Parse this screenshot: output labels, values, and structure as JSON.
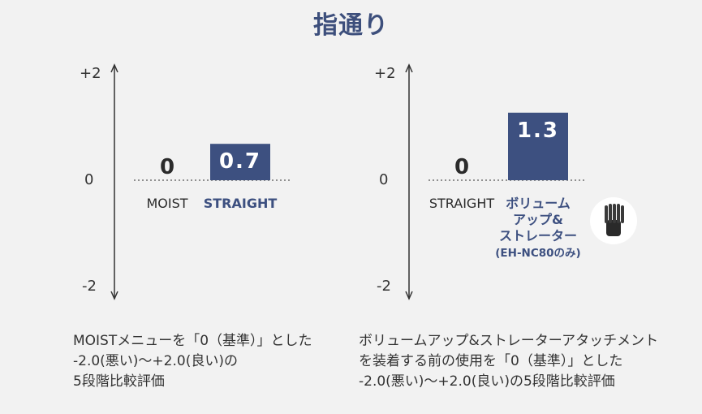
{
  "title": "指通り",
  "colors": {
    "bar": "#3d5080",
    "accent_text": "#3d5080",
    "axis": "#333333"
  },
  "chart_data": [
    {
      "type": "bar",
      "ylim": [
        -2,
        2
      ],
      "yticks": [
        "+2",
        "0",
        "-2"
      ],
      "categories": [
        "MOIST",
        "STRAIGHT"
      ],
      "values": [
        0,
        0.7
      ],
      "value_labels": [
        "0",
        "0.7"
      ],
      "highlight_index": 1,
      "note": "MOISTメニューを「0（基準）」とした\n-2.0(悪い)〜+2.0(良い)の\n5段階比較評価"
    },
    {
      "type": "bar",
      "ylim": [
        -2,
        2
      ],
      "yticks": [
        "+2",
        "0",
        "-2"
      ],
      "categories": [
        "STRAIGHT",
        "ボリュームアップ&ストレーター(EH-NC80のみ)"
      ],
      "category_lines": [
        [
          "STRAIGHT"
        ],
        [
          "ボリューム",
          "アップ&",
          "ストレーター",
          "(EH-NC80のみ)"
        ]
      ],
      "values": [
        0,
        1.3
      ],
      "value_labels": [
        "0",
        "1.3"
      ],
      "highlight_index": 1,
      "note": "ボリュームアップ&ストレーターアタッチメント\nを装着する前の使用を「0（基準）」とした\n-2.0(悪い)〜+2.0(良い)の5段階比較評価",
      "accessory_icon": "comb-attachment-icon"
    }
  ]
}
